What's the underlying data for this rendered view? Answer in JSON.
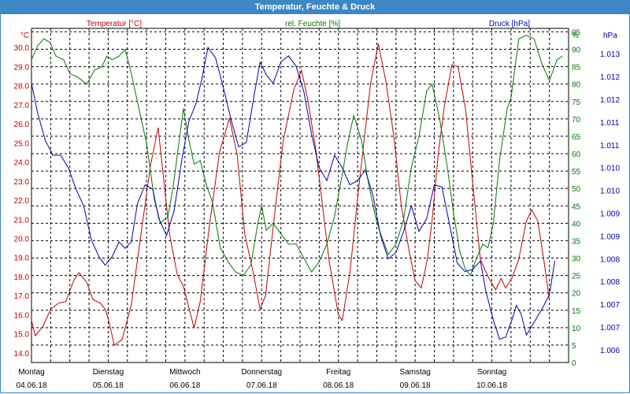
{
  "window": {
    "title": "Temperatur, Feuchte & Druck"
  },
  "chart_data": {
    "type": "line",
    "title": "Temperatur, Feuchte & Druck",
    "grid": true,
    "x_range": [
      "04.06.18 00:00",
      "11.06.18 00:00"
    ],
    "x_ticks": [
      {
        "day": "Montag",
        "date": "04.06.18"
      },
      {
        "day": "Dienstag",
        "date": "05.06.18"
      },
      {
        "day": "Mittwoch",
        "date": "06.06.18"
      },
      {
        "day": "Donnerstag",
        "date": "07.06.18"
      },
      {
        "day": "Freitag",
        "date": "08.06.18"
      },
      {
        "day": "Samstag",
        "date": "09.06.18"
      },
      {
        "day": "Sonntag",
        "date": "10.06.18"
      }
    ],
    "axes": {
      "temperature": {
        "label": "Temperatur [°C]",
        "unit": "°C",
        "color": "#c00000",
        "range": [
          13.5,
          31.0
        ],
        "ticks": [
          "14.0",
          "15.0",
          "16.0",
          "17.0",
          "18.0",
          "19.0",
          "20.0",
          "21.0",
          "22.0",
          "23.0",
          "24.0",
          "25.0",
          "26.0",
          "27.0",
          "28.0",
          "29.0",
          "30.0"
        ]
      },
      "humidity": {
        "label": "rel. Feuchte [%]",
        "unit": "%",
        "color": "#007a00",
        "range": [
          0,
          96
        ],
        "ticks": [
          "0",
          "5",
          "10",
          "15",
          "20",
          "25",
          "30",
          "35",
          "40",
          "45",
          "50",
          "55",
          "60",
          "65",
          "70",
          "75",
          "80",
          "85",
          "90",
          "95"
        ],
        "top_label": "%"
      },
      "pressure": {
        "label": "Druck [hPa]",
        "unit": "hPa",
        "color": "#0000b0",
        "range": [
          1005.7,
          1013.6
        ],
        "ticks": [
          "1.006",
          "1.007",
          "1.007",
          "1.008",
          "1.008",
          "1.009",
          "1.009",
          "1.010",
          "1.010",
          "1.011",
          "1.011",
          "1.012",
          "1.012",
          "1.013"
        ]
      }
    },
    "series": [
      {
        "name": "Temperatur [°C]",
        "axis": "temperature",
        "color": "#c00000",
        "points": [
          [
            0.0,
            15.7
          ],
          [
            0.05,
            14.9
          ],
          [
            0.15,
            15.4
          ],
          [
            0.25,
            16.3
          ],
          [
            0.35,
            16.6
          ],
          [
            0.45,
            16.7
          ],
          [
            0.55,
            17.8
          ],
          [
            0.62,
            18.2
          ],
          [
            0.72,
            17.7
          ],
          [
            0.8,
            16.8
          ],
          [
            0.9,
            16.6
          ],
          [
            0.96,
            16.3
          ],
          [
            1.0,
            15.8
          ],
          [
            1.08,
            14.4
          ],
          [
            1.18,
            14.7
          ],
          [
            1.3,
            16.5
          ],
          [
            1.42,
            20.0
          ],
          [
            1.55,
            23.8
          ],
          [
            1.65,
            25.8
          ],
          [
            1.72,
            23.2
          ],
          [
            1.8,
            20.2
          ],
          [
            1.9,
            18.1
          ],
          [
            1.98,
            17.5
          ],
          [
            2.05,
            16.4
          ],
          [
            2.12,
            15.3
          ],
          [
            2.2,
            16.7
          ],
          [
            2.32,
            20.7
          ],
          [
            2.45,
            24.5
          ],
          [
            2.58,
            26.3
          ],
          [
            2.68,
            24.4
          ],
          [
            2.78,
            20.2
          ],
          [
            2.88,
            18.4
          ],
          [
            2.98,
            16.3
          ],
          [
            3.05,
            17.0
          ],
          [
            3.15,
            20.6
          ],
          [
            3.28,
            25.1
          ],
          [
            3.42,
            27.8
          ],
          [
            3.52,
            28.8
          ],
          [
            3.6,
            27.3
          ],
          [
            3.7,
            24.8
          ],
          [
            3.8,
            21.5
          ],
          [
            3.88,
            18.8
          ],
          [
            4.0,
            16.0
          ],
          [
            4.05,
            15.7
          ],
          [
            4.15,
            18.2
          ],
          [
            4.28,
            23.2
          ],
          [
            4.42,
            28.1
          ],
          [
            4.52,
            30.2
          ],
          [
            4.62,
            28.2
          ],
          [
            4.72,
            25.4
          ],
          [
            4.82,
            21.7
          ],
          [
            4.92,
            19.4
          ],
          [
            5.0,
            17.8
          ],
          [
            5.08,
            17.4
          ],
          [
            5.16,
            18.9
          ],
          [
            5.22,
            20.9
          ],
          [
            5.3,
            24.4
          ],
          [
            5.38,
            26.9
          ],
          [
            5.48,
            29.1
          ],
          [
            5.56,
            29.0
          ],
          [
            5.66,
            26.7
          ],
          [
            5.76,
            22.5
          ],
          [
            5.85,
            18.9
          ],
          [
            5.95,
            18.0
          ],
          [
            6.05,
            17.3
          ],
          [
            6.12,
            17.9
          ],
          [
            6.18,
            17.4
          ],
          [
            6.26,
            17.9
          ],
          [
            6.35,
            18.9
          ],
          [
            6.45,
            20.9
          ],
          [
            6.52,
            21.5
          ],
          [
            6.6,
            20.9
          ],
          [
            6.68,
            18.8
          ],
          [
            6.75,
            16.8
          ]
        ]
      },
      {
        "name": "rel. Feuchte [%]",
        "axis": "humidity",
        "color": "#007a00",
        "points": [
          [
            0.0,
            87
          ],
          [
            0.08,
            91
          ],
          [
            0.16,
            93
          ],
          [
            0.24,
            92
          ],
          [
            0.32,
            88
          ],
          [
            0.42,
            87
          ],
          [
            0.5,
            83
          ],
          [
            0.6,
            82
          ],
          [
            0.72,
            80
          ],
          [
            0.82,
            84
          ],
          [
            0.92,
            85
          ],
          [
            0.98,
            88
          ],
          [
            1.05,
            87
          ],
          [
            1.14,
            88
          ],
          [
            1.22,
            90
          ],
          [
            1.3,
            83
          ],
          [
            1.4,
            73
          ],
          [
            1.5,
            63
          ],
          [
            1.6,
            47
          ],
          [
            1.68,
            40
          ],
          [
            1.78,
            42
          ],
          [
            1.85,
            51
          ],
          [
            1.92,
            63
          ],
          [
            1.98,
            73
          ],
          [
            2.05,
            64
          ],
          [
            2.12,
            57
          ],
          [
            2.2,
            58
          ],
          [
            2.28,
            51
          ],
          [
            2.36,
            46
          ],
          [
            2.46,
            33
          ],
          [
            2.56,
            29
          ],
          [
            2.66,
            26
          ],
          [
            2.76,
            25
          ],
          [
            2.86,
            28
          ],
          [
            2.95,
            40
          ],
          [
            3.0,
            45
          ],
          [
            3.06,
            38
          ],
          [
            3.15,
            40
          ],
          [
            3.25,
            37
          ],
          [
            3.35,
            34
          ],
          [
            3.45,
            34
          ],
          [
            3.55,
            30
          ],
          [
            3.65,
            26
          ],
          [
            3.75,
            29
          ],
          [
            3.85,
            34
          ],
          [
            3.95,
            42
          ],
          [
            4.05,
            54
          ],
          [
            4.12,
            63
          ],
          [
            4.2,
            71
          ],
          [
            4.3,
            64
          ],
          [
            4.38,
            53
          ],
          [
            4.48,
            42
          ],
          [
            4.55,
            37
          ],
          [
            4.65,
            31
          ],
          [
            4.75,
            34
          ],
          [
            4.85,
            41
          ],
          [
            4.95,
            56
          ],
          [
            5.05,
            65
          ],
          [
            5.15,
            78
          ],
          [
            5.22,
            80
          ],
          [
            5.32,
            70
          ],
          [
            5.42,
            56
          ],
          [
            5.5,
            43
          ],
          [
            5.58,
            32
          ],
          [
            5.65,
            27
          ],
          [
            5.72,
            25
          ],
          [
            5.8,
            30
          ],
          [
            5.88,
            34
          ],
          [
            5.95,
            33
          ],
          [
            6.02,
            40
          ],
          [
            6.1,
            58
          ],
          [
            6.2,
            73
          ],
          [
            6.25,
            76
          ],
          [
            6.35,
            93
          ],
          [
            6.45,
            94
          ],
          [
            6.55,
            93
          ],
          [
            6.65,
            86
          ],
          [
            6.75,
            81
          ],
          [
            6.85,
            87
          ],
          [
            6.92,
            88
          ]
        ]
      },
      {
        "name": "Druck [hPa]",
        "axis": "pressure",
        "color": "#0000b0",
        "points": [
          [
            0.0,
            1012.3
          ],
          [
            0.08,
            1011.6
          ],
          [
            0.18,
            1010.95
          ],
          [
            0.28,
            1010.6
          ],
          [
            0.38,
            1010.6
          ],
          [
            0.48,
            1010.3
          ],
          [
            0.58,
            1009.8
          ],
          [
            0.68,
            1009.4
          ],
          [
            0.78,
            1008.6
          ],
          [
            0.88,
            1008.2
          ],
          [
            0.96,
            1008.0
          ],
          [
            1.05,
            1008.2
          ],
          [
            1.14,
            1008.55
          ],
          [
            1.22,
            1008.4
          ],
          [
            1.3,
            1008.55
          ],
          [
            1.38,
            1009.45
          ],
          [
            1.48,
            1009.9
          ],
          [
            1.58,
            1009.8
          ],
          [
            1.66,
            1009.1
          ],
          [
            1.76,
            1008.7
          ],
          [
            1.86,
            1009.3
          ],
          [
            1.96,
            1010.5
          ],
          [
            2.05,
            1011.4
          ],
          [
            2.14,
            1011.8
          ],
          [
            2.22,
            1012.4
          ],
          [
            2.3,
            1013.15
          ],
          [
            2.4,
            1012.9
          ],
          [
            2.5,
            1012.2
          ],
          [
            2.6,
            1011.45
          ],
          [
            2.7,
            1010.8
          ],
          [
            2.8,
            1010.9
          ],
          [
            2.9,
            1012.0
          ],
          [
            2.98,
            1012.8
          ],
          [
            3.06,
            1012.5
          ],
          [
            3.15,
            1012.3
          ],
          [
            3.25,
            1012.8
          ],
          [
            3.35,
            1012.95
          ],
          [
            3.45,
            1012.7
          ],
          [
            3.55,
            1012.1
          ],
          [
            3.65,
            1011.1
          ],
          [
            3.75,
            1010.3
          ],
          [
            3.85,
            1010.0
          ],
          [
            3.95,
            1010.6
          ],
          [
            4.05,
            1010.3
          ],
          [
            4.15,
            1009.9
          ],
          [
            4.25,
            1010.0
          ],
          [
            4.35,
            1010.25
          ],
          [
            4.45,
            1009.65
          ],
          [
            4.55,
            1008.7
          ],
          [
            4.65,
            1008.15
          ],
          [
            4.75,
            1008.3
          ],
          [
            4.85,
            1008.8
          ],
          [
            4.95,
            1009.4
          ],
          [
            5.05,
            1008.8
          ],
          [
            5.15,
            1009.1
          ],
          [
            5.25,
            1009.9
          ],
          [
            5.35,
            1009.85
          ],
          [
            5.45,
            1008.95
          ],
          [
            5.55,
            1008.05
          ],
          [
            5.65,
            1007.85
          ],
          [
            5.75,
            1007.9
          ],
          [
            5.85,
            1008.1
          ],
          [
            5.92,
            1007.4
          ],
          [
            6.02,
            1006.7
          ],
          [
            6.1,
            1006.25
          ],
          [
            6.18,
            1006.3
          ],
          [
            6.26,
            1006.7
          ],
          [
            6.32,
            1007.05
          ],
          [
            6.38,
            1006.85
          ],
          [
            6.45,
            1006.35
          ],
          [
            6.55,
            1006.65
          ],
          [
            6.65,
            1006.95
          ],
          [
            6.75,
            1007.3
          ],
          [
            6.82,
            1008.1
          ]
        ]
      }
    ]
  }
}
